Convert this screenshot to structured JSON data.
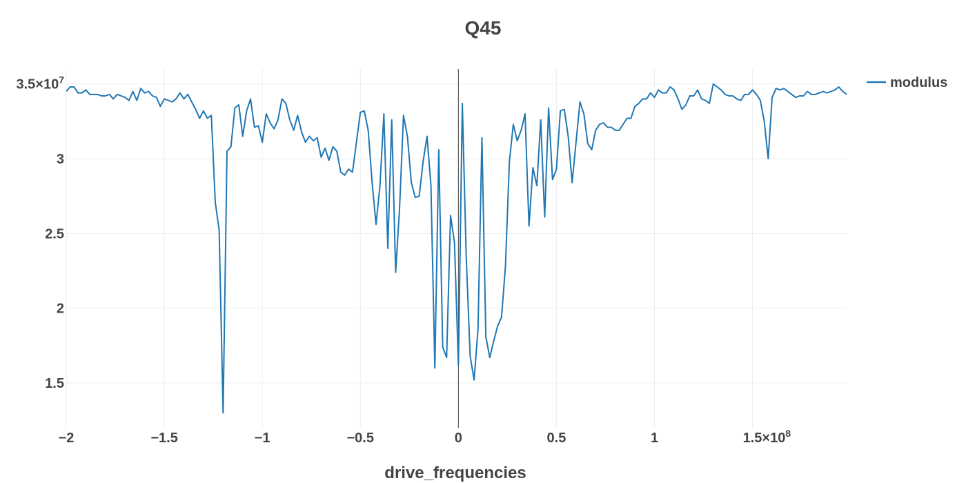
{
  "chart_data": {
    "type": "line",
    "title": "Q45",
    "xlabel": "drive_frequencies",
    "ylabel": "",
    "x_exponent_label": "×10",
    "x_exponent": "8",
    "y_exponent_label": "×10",
    "y_exponent": "7",
    "xlim": [
      -2.0,
      1.98
    ],
    "ylim": [
      1.2,
      3.6
    ],
    "x_ticks": [
      -2,
      -1.5,
      -1,
      -0.5,
      0,
      0.5,
      1,
      1.5
    ],
    "x_tick_labels": [
      "−2",
      "−1.5",
      "−1",
      "−0.5",
      "0",
      "0.5",
      "1",
      "1.5×10⁸"
    ],
    "y_ticks": [
      1.5,
      2,
      2.5,
      3,
      3.5
    ],
    "y_tick_labels": [
      "1.5",
      "2",
      "2.5",
      "3",
      "3.5×10⁷"
    ],
    "grid": true,
    "legend_position": "top-right",
    "line_color": "#1f77b4",
    "series": [
      {
        "name": "modulus",
        "x": [
          -2.0,
          -1.98,
          -1.96,
          -1.94,
          -1.92,
          -1.9,
          -1.88,
          -1.86,
          -1.84,
          -1.82,
          -1.8,
          -1.78,
          -1.76,
          -1.74,
          -1.72,
          -1.7,
          -1.68,
          -1.66,
          -1.64,
          -1.62,
          -1.6,
          -1.58,
          -1.56,
          -1.54,
          -1.52,
          -1.5,
          -1.48,
          -1.46,
          -1.44,
          -1.42,
          -1.4,
          -1.38,
          -1.36,
          -1.34,
          -1.32,
          -1.3,
          -1.28,
          -1.26,
          -1.24,
          -1.22,
          -1.2,
          -1.18,
          -1.16,
          -1.14,
          -1.12,
          -1.1,
          -1.08,
          -1.06,
          -1.04,
          -1.02,
          -1.0,
          -0.98,
          -0.96,
          -0.94,
          -0.92,
          -0.9,
          -0.88,
          -0.86,
          -0.84,
          -0.82,
          -0.8,
          -0.78,
          -0.76,
          -0.74,
          -0.72,
          -0.7,
          -0.68,
          -0.66,
          -0.64,
          -0.62,
          -0.6,
          -0.58,
          -0.56,
          -0.54,
          -0.52,
          -0.5,
          -0.48,
          -0.46,
          -0.44,
          -0.42,
          -0.4,
          -0.38,
          -0.36,
          -0.34,
          -0.32,
          -0.3,
          -0.28,
          -0.26,
          -0.24,
          -0.22,
          -0.2,
          -0.18,
          -0.16,
          -0.14,
          -0.12,
          -0.1,
          -0.08,
          -0.06,
          -0.04,
          -0.02,
          0.0,
          0.02,
          0.04,
          0.06,
          0.08,
          0.1,
          0.12,
          0.14,
          0.16,
          0.18,
          0.2,
          0.22,
          0.24,
          0.26,
          0.28,
          0.3,
          0.32,
          0.34,
          0.36,
          0.38,
          0.4,
          0.42,
          0.44,
          0.46,
          0.48,
          0.5,
          0.52,
          0.54,
          0.56,
          0.58,
          0.6,
          0.62,
          0.64,
          0.66,
          0.68,
          0.7,
          0.72,
          0.74,
          0.76,
          0.78,
          0.8,
          0.82,
          0.84,
          0.86,
          0.88,
          0.9,
          0.92,
          0.94,
          0.96,
          0.98,
          1.0,
          1.02,
          1.04,
          1.06,
          1.08,
          1.1,
          1.12,
          1.14,
          1.16,
          1.18,
          1.2,
          1.22,
          1.24,
          1.26,
          1.28,
          1.3,
          1.32,
          1.34,
          1.36,
          1.38,
          1.4,
          1.42,
          1.44,
          1.46,
          1.48,
          1.5,
          1.52,
          1.54,
          1.56,
          1.58,
          1.6,
          1.62,
          1.64,
          1.66,
          1.68,
          1.7,
          1.72,
          1.74,
          1.76,
          1.78,
          1.8,
          1.82,
          1.84,
          1.86,
          1.88,
          1.9,
          1.92,
          1.94,
          1.96,
          1.98
        ],
        "y": [
          3.45,
          3.48,
          3.48,
          3.44,
          3.44,
          3.46,
          3.43,
          3.43,
          3.43,
          3.42,
          3.42,
          3.43,
          3.4,
          3.43,
          3.42,
          3.41,
          3.39,
          3.45,
          3.39,
          3.47,
          3.44,
          3.45,
          3.42,
          3.41,
          3.35,
          3.4,
          3.39,
          3.38,
          3.4,
          3.44,
          3.4,
          3.43,
          3.38,
          3.33,
          3.27,
          3.32,
          3.27,
          3.29,
          2.71,
          2.52,
          1.3,
          3.05,
          3.08,
          3.34,
          3.36,
          3.15,
          3.32,
          3.4,
          3.21,
          3.22,
          3.11,
          3.3,
          3.24,
          3.2,
          3.26,
          3.4,
          3.37,
          3.26,
          3.19,
          3.29,
          3.18,
          3.11,
          3.15,
          3.12,
          3.14,
          3.01,
          3.07,
          2.99,
          3.08,
          3.05,
          2.91,
          2.89,
          2.93,
          2.91,
          3.11,
          3.31,
          3.32,
          3.19,
          2.84,
          2.56,
          2.82,
          3.3,
          2.4,
          3.26,
          2.24,
          2.67,
          3.29,
          3.15,
          2.84,
          2.74,
          2.75,
          2.98,
          3.15,
          2.82,
          1.6,
          3.06,
          1.74,
          1.67,
          2.62,
          2.44,
          1.62,
          3.37,
          2.34,
          1.68,
          1.52,
          1.86,
          3.14,
          1.81,
          1.67,
          1.78,
          1.88,
          1.94,
          2.28,
          2.98,
          3.23,
          3.12,
          3.19,
          3.3,
          2.55,
          2.94,
          2.82,
          3.26,
          2.61,
          3.34,
          2.86,
          2.93,
          3.32,
          3.33,
          3.15,
          2.84,
          3.11,
          3.38,
          3.3,
          3.1,
          3.06,
          3.19,
          3.23,
          3.24,
          3.21,
          3.21,
          3.19,
          3.19,
          3.23,
          3.27,
          3.27,
          3.35,
          3.37,
          3.4,
          3.4,
          3.44,
          3.41,
          3.46,
          3.44,
          3.44,
          3.48,
          3.46,
          3.4,
          3.33,
          3.36,
          3.42,
          3.42,
          3.46,
          3.4,
          3.39,
          3.37,
          3.5,
          3.48,
          3.46,
          3.43,
          3.42,
          3.42,
          3.4,
          3.39,
          3.43,
          3.43,
          3.46,
          3.43,
          3.39,
          3.25,
          3.0,
          3.41,
          3.47,
          3.46,
          3.47,
          3.45,
          3.43,
          3.41,
          3.42,
          3.42,
          3.45,
          3.43,
          3.43,
          3.44,
          3.45,
          3.44,
          3.45,
          3.46,
          3.48,
          3.45,
          3.43
        ]
      }
    ]
  }
}
